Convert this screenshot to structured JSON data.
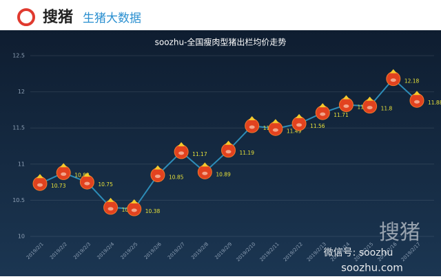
{
  "header": {
    "logo": "搜猪",
    "tagline": "生猪大数据"
  },
  "chart_data": {
    "type": "line",
    "title": "soozhu-全国瘦肉型猪出栏均价走势",
    "categories": [
      "2019/2/1",
      "2019/2/2",
      "2019/2/3",
      "2019/2/4",
      "2019/2/5",
      "2019/2/6",
      "2019/2/7",
      "2019/2/8",
      "2019/2/9",
      "2019/2/10",
      "2019/2/11",
      "2019/2/12",
      "2019/2/13",
      "2019/2/14",
      "2019/2/15",
      "2019/2/16",
      "2019/2/17"
    ],
    "series": [
      {
        "name": "均价",
        "color": "#2d8db8",
        "values": [
          10.73,
          10.88,
          10.75,
          10.4,
          10.38,
          10.85,
          11.17,
          10.89,
          11.19,
          11.53,
          11.49,
          11.56,
          11.71,
          11.82,
          11.8,
          12.18,
          11.88
        ]
      }
    ],
    "ylim": [
      10,
      12.5
    ],
    "yticks": [
      10,
      10.5,
      11,
      11.5,
      12,
      12.5
    ],
    "grid": true
  },
  "watermark": {
    "wechat": "微信号: soozhu",
    "site": "soozhu.com",
    "logo": "搜猪"
  }
}
